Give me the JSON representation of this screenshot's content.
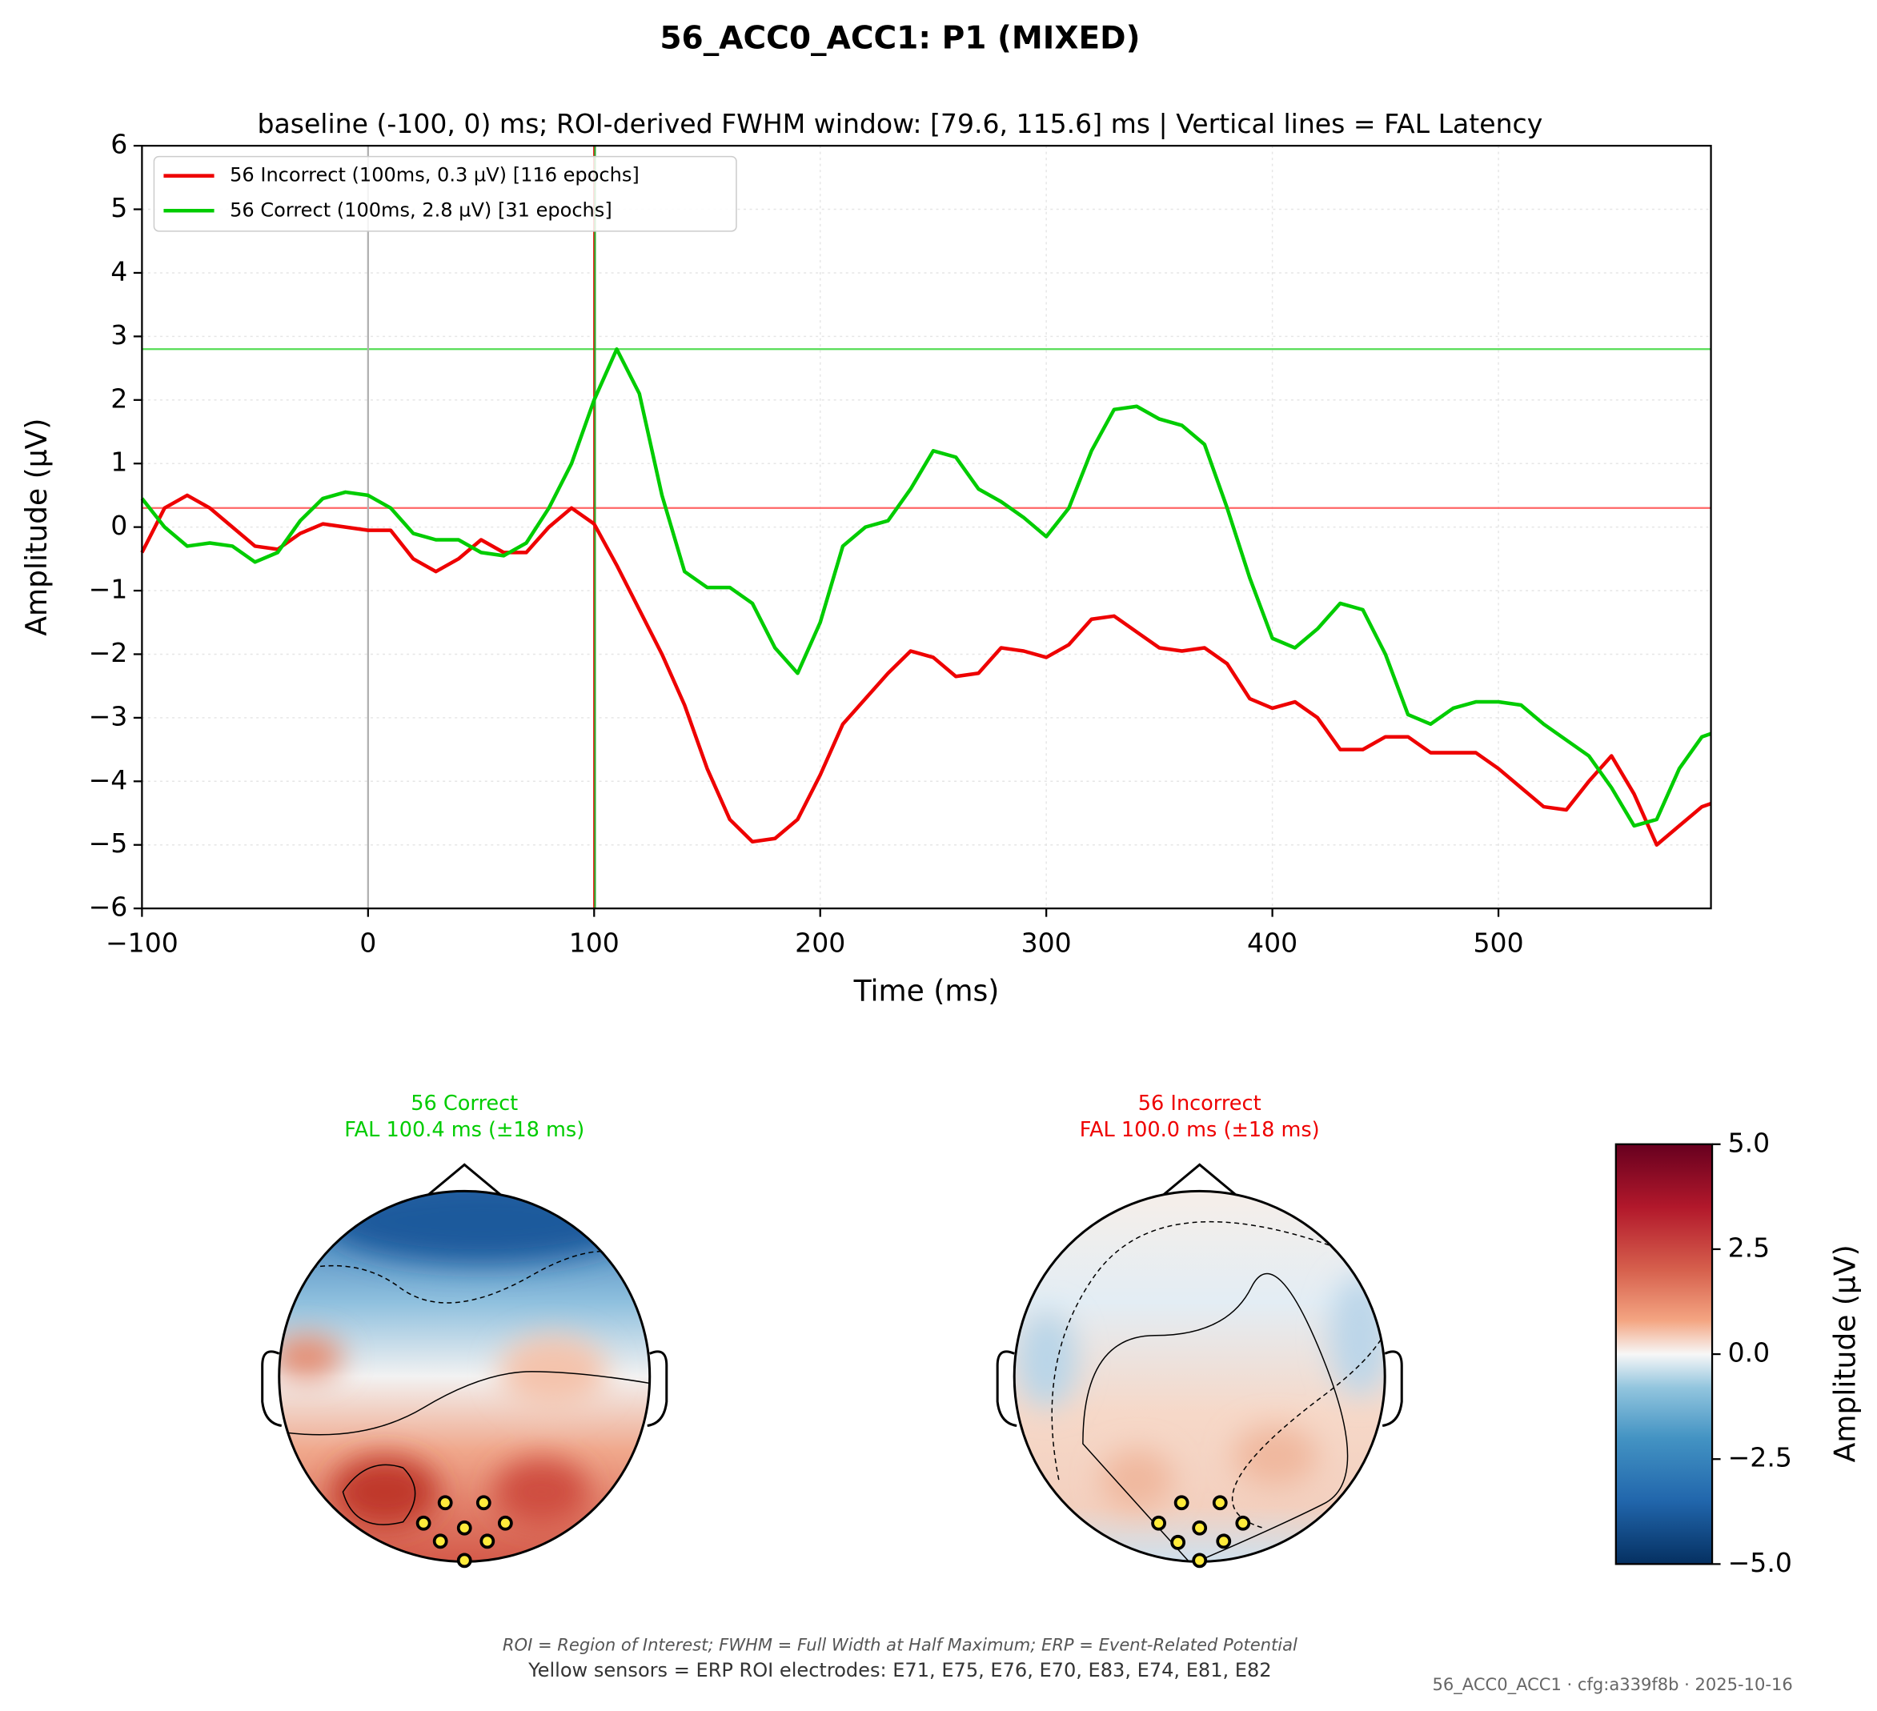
{
  "chart_data": {
    "type": "line",
    "title": "56_ACC0_ACC1: P1 (MIXED)",
    "subtitle": "baseline (-100, 0) ms; ROI-derived FWHM window: [79.6, 115.6] ms | Vertical lines = FAL Latency",
    "x_label": "Time (ms)",
    "y_label": "Amplitude (µV)",
    "xlim": [
      -100,
      594
    ],
    "ylim": [
      -6,
      6
    ],
    "xticks": [
      {
        "value": -100,
        "label": "−100"
      },
      0,
      100,
      200,
      300,
      400,
      500
    ],
    "yticks": [
      {
        "value": -6,
        "label": "−6"
      },
      {
        "value": -5,
        "label": "−5"
      },
      {
        "value": -4,
        "label": "−4"
      },
      {
        "value": -3,
        "label": "−3"
      },
      {
        "value": -2,
        "label": "−2"
      },
      {
        "value": -1,
        "label": "−1"
      },
      0,
      1,
      2,
      3,
      4,
      5,
      6
    ],
    "grid": true,
    "legend": "upper left",
    "x": [
      -100,
      -90,
      -80,
      -70,
      -60,
      -50,
      -40,
      -30,
      -20,
      -10,
      0,
      10,
      20,
      30,
      40,
      50,
      60,
      70,
      80,
      90,
      100,
      110,
      120,
      130,
      140,
      150,
      160,
      170,
      180,
      190,
      200,
      210,
      220,
      230,
      240,
      250,
      260,
      270,
      280,
      290,
      300,
      310,
      320,
      330,
      340,
      350,
      360,
      370,
      380,
      390,
      400,
      410,
      420,
      430,
      440,
      450,
      460,
      470,
      480,
      490,
      500,
      510,
      520,
      530,
      540,
      550,
      560,
      570,
      580,
      590,
      594
    ],
    "series": [
      {
        "name": "56 Incorrect (100ms, 0.3 µV) [116 epochs]",
        "color": "#ee0000",
        "values": [
          -0.4,
          0.3,
          0.5,
          0.3,
          0.0,
          -0.3,
          -0.35,
          -0.1,
          0.05,
          0.0,
          -0.05,
          -0.05,
          -0.5,
          -0.7,
          -0.5,
          -0.2,
          -0.4,
          -0.4,
          0.0,
          0.3,
          0.05,
          -0.6,
          -1.3,
          -2.0,
          -2.8,
          -3.8,
          -4.6,
          -4.95,
          -4.9,
          -4.6,
          -3.9,
          -3.1,
          -2.7,
          -2.3,
          -1.95,
          -2.05,
          -2.35,
          -2.3,
          -1.9,
          -1.95,
          -2.05,
          -1.85,
          -1.45,
          -1.4,
          -1.65,
          -1.9,
          -1.95,
          -1.9,
          -2.15,
          -2.7,
          -2.85,
          -2.75,
          -3.0,
          -3.5,
          -3.5,
          -3.3,
          -3.3,
          -3.55,
          -3.55,
          -3.55,
          -3.8,
          -4.1,
          -4.4,
          -4.45,
          -4.0,
          -3.6,
          -4.2,
          -5.0,
          -4.7,
          -4.4,
          -4.35
        ]
      },
      {
        "name": "56 Correct (100ms, 2.8 µV) [31 epochs]",
        "color": "#00cc00",
        "values": [
          0.45,
          0.0,
          -0.3,
          -0.25,
          -0.3,
          -0.55,
          -0.4,
          0.1,
          0.45,
          0.55,
          0.5,
          0.3,
          -0.1,
          -0.2,
          -0.2,
          -0.4,
          -0.45,
          -0.25,
          0.3,
          1.0,
          2.0,
          2.8,
          2.1,
          0.5,
          -0.7,
          -0.95,
          -0.95,
          -1.2,
          -1.9,
          -2.3,
          -1.5,
          -0.3,
          0.0,
          0.1,
          0.6,
          1.2,
          1.1,
          0.6,
          0.4,
          0.15,
          -0.15,
          0.3,
          1.2,
          1.85,
          1.9,
          1.7,
          1.6,
          1.3,
          0.3,
          -0.8,
          -1.75,
          -1.9,
          -1.6,
          -1.2,
          -1.3,
          -2.0,
          -2.95,
          -3.1,
          -2.85,
          -2.75,
          -2.75,
          -2.8,
          -3.1,
          -3.35,
          -3.6,
          -4.1,
          -4.7,
          -4.6,
          -3.8,
          -3.3,
          -3.25
        ]
      }
    ],
    "hlines": [
      {
        "value": 0.3,
        "color": "#ff6666"
      },
      {
        "value": 2.8,
        "color": "#55dd55"
      }
    ],
    "vlines": [
      {
        "value": 0,
        "color": "#b0b0b0"
      },
      {
        "value": 100.0,
        "color": "#ee0000"
      },
      {
        "value": 100.4,
        "color": "#33aa33"
      }
    ]
  },
  "topomaps": [
    {
      "title": "56 Correct",
      "subtitle": "FAL 100.4 ms (±18 ms)",
      "color": "#00cc00"
    },
    {
      "title": "56 Incorrect",
      "subtitle": "FAL 100.0 ms (±18 ms)",
      "color": "#ee0000"
    }
  ],
  "colorbar": {
    "label": "Amplitude (µV)",
    "lim": [
      -5,
      5
    ],
    "ticks": [
      {
        "value": 5,
        "label": "5.0"
      },
      {
        "value": 2.5,
        "label": "2.5"
      },
      {
        "value": 0,
        "label": "0.0"
      },
      {
        "value": -2.5,
        "label": "−2.5"
      },
      {
        "value": -5,
        "label": "−5.0"
      }
    ]
  },
  "footer": {
    "abbreviations": "ROI = Region of Interest; FWHM = Full Width at Half Maximum; ERP = Event-Related Potential",
    "roi_note": "Yellow sensors = ERP ROI electrodes: E71, E75, E76, E70, E83, E74, E81, E82",
    "stamp": "56_ACC0_ACC1 · cfg:a339f8b · 2025-10-16"
  }
}
